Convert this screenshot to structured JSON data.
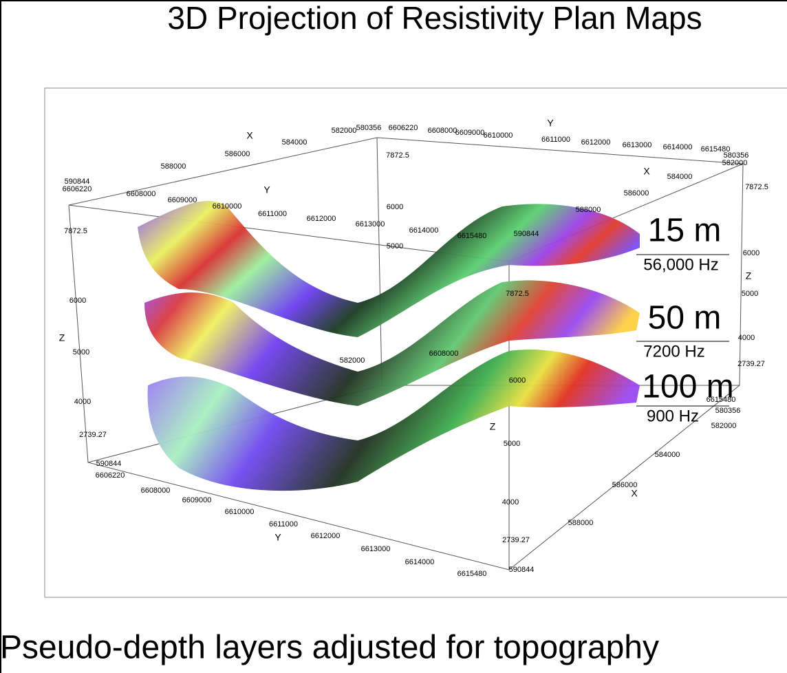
{
  "title": "3D Projection of Resistivity Plan Maps",
  "caption": "Pseudo-depth layers adjusted for topography",
  "figure": {
    "axis_labels": [
      "X",
      "584000",
      "586000",
      "588000",
      "590844",
      "6606220",
      "582000",
      "580356",
      "6606220",
      "7872.5",
      "6608000",
      "6609000",
      "6610000",
      "Y",
      "6611000",
      "6612000",
      "6613000",
      "6614000",
      "6615480",
      "580356",
      "582000",
      "X",
      "584000",
      "586000",
      "588000",
      "590844",
      "7872.5",
      "6608000",
      "Y",
      "6609000",
      "6610000",
      "6611000",
      "6612000",
      "6613000",
      "6614000",
      "6615480",
      "7872.5",
      "6000",
      "5000",
      "6000",
      "Z",
      "5000",
      "4000",
      "2739.27",
      "590844",
      "6606220",
      "6608000",
      "6609000",
      "6610000",
      "6611000",
      "Y",
      "6612000",
      "6613000",
      "6614000",
      "6615480",
      "590844",
      "7872.5",
      "6000",
      "Z",
      "5000",
      "4000",
      "2739.27",
      "6000",
      "Z",
      "5000",
      "4000",
      "2739.27",
      "6615480",
      "580356",
      "582000",
      "584000",
      "586000",
      "X",
      "588000",
      "582000",
      "6608000"
    ],
    "layers": [
      {
        "depth": "15 m",
        "frequency": "56,000 Hz"
      },
      {
        "depth": "50 m",
        "frequency": "7200 Hz"
      },
      {
        "depth": "100 m",
        "frequency": "900 Hz"
      }
    ]
  }
}
